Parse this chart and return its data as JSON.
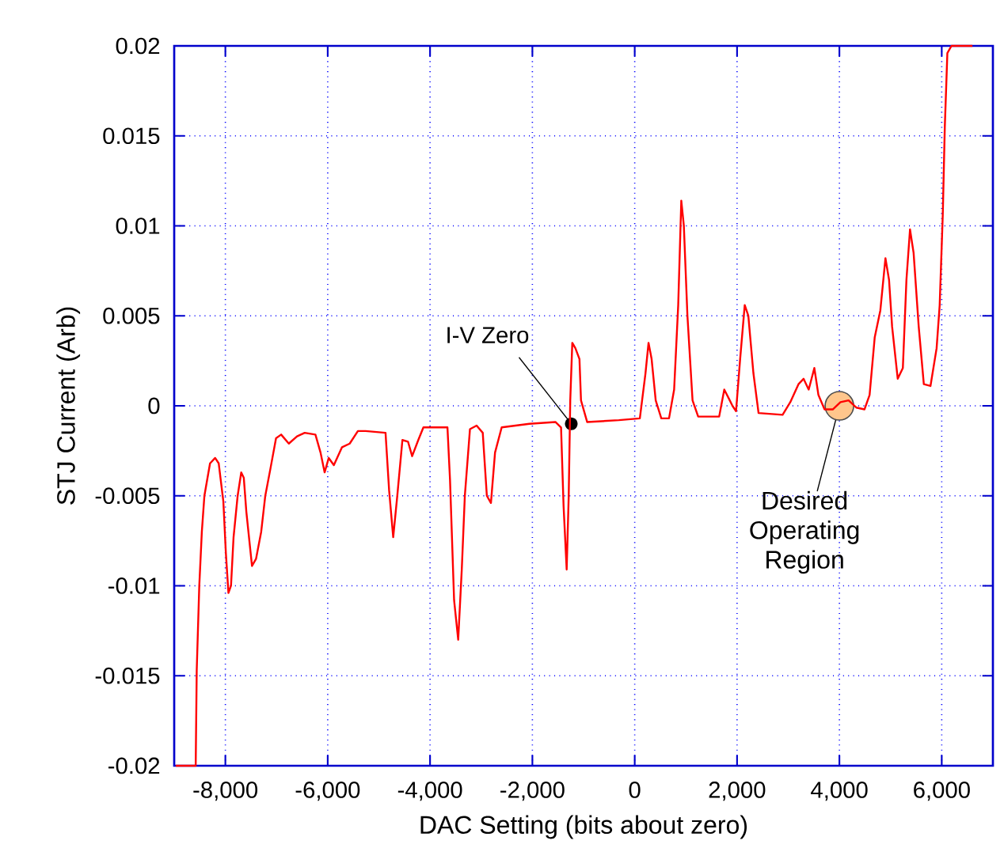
{
  "chart_data": {
    "type": "line",
    "xlabel": "DAC Setting (bits about zero)",
    "ylabel": "STJ Current (Arb)",
    "xlim": [
      -9000,
      7000
    ],
    "ylim": [
      -0.02,
      0.02
    ],
    "xticks": [
      {
        "value": -8000,
        "label": "-8,000"
      },
      {
        "value": -6000,
        "label": "-6,000"
      },
      {
        "value": -4000,
        "label": "-4,000"
      },
      {
        "value": -2000,
        "label": "-2,000"
      },
      0,
      {
        "value": 2000,
        "label": "2,000"
      },
      {
        "value": 4000,
        "label": "4,000"
      },
      {
        "value": 6000,
        "label": "6,000"
      }
    ],
    "yticks": [
      -0.02,
      -0.015,
      -0.01,
      -0.005,
      0,
      0.005,
      0.01,
      0.015,
      0.02
    ],
    "grid": true,
    "marker": "none",
    "line_style": "solid",
    "series": [
      {
        "color": "#ff0000",
        "x": [
          -8970,
          -8580,
          -8560,
          -8510,
          -8460,
          -8410,
          -8300,
          -8200,
          -8130,
          -8040,
          -7990,
          -7940,
          -7890,
          -7840,
          -7760,
          -7690,
          -7640,
          -7590,
          -7480,
          -7400,
          -7300,
          -7220,
          -7120,
          -7010,
          -6910,
          -6760,
          -6600,
          -6450,
          -6240,
          -6140,
          -6060,
          -5980,
          -5880,
          -5720,
          -5570,
          -5410,
          -5260,
          -4870,
          -4800,
          -4720,
          -4640,
          -4540,
          -4430,
          -4350,
          -4230,
          -4130,
          -3660,
          -3610,
          -3530,
          -3450,
          -3380,
          -3320,
          -3220,
          -3090,
          -2970,
          -2890,
          -2810,
          -2730,
          -2600,
          -2060,
          -1550,
          -1440,
          -1390,
          -1330,
          -1290,
          -1260,
          -1220,
          -1160,
          -1080,
          -1050,
          -930,
          -310,
          100,
          210,
          270,
          330,
          410,
          520,
          670,
          770,
          850,
          910,
          960,
          1030,
          1130,
          1240,
          1650,
          1750,
          1840,
          1910,
          1980,
          2060,
          2150,
          2220,
          2320,
          2420,
          2890,
          3040,
          3200,
          3300,
          3400,
          3510,
          3590,
          3710,
          3870,
          4020,
          4180,
          4330,
          4490,
          4590,
          4690,
          4800,
          4900,
          4970,
          5030,
          5140,
          5240,
          5310,
          5380,
          5450,
          5550,
          5650,
          5780,
          5900,
          5960,
          6020,
          6060,
          6110,
          6190,
          6600
        ],
        "values": [
          -0.02,
          -0.02,
          -0.0147,
          -0.01,
          -0.007,
          -0.005,
          -0.0032,
          -0.0029,
          -0.0032,
          -0.0053,
          -0.0082,
          -0.0104,
          -0.01,
          -0.0073,
          -0.005,
          -0.0037,
          -0.004,
          -0.0059,
          -0.0089,
          -0.0085,
          -0.007,
          -0.005,
          -0.0035,
          -0.0018,
          -0.0016,
          -0.0021,
          -0.0017,
          -0.0015,
          -0.0016,
          -0.0026,
          -0.0037,
          -0.0029,
          -0.0033,
          -0.0023,
          -0.0021,
          -0.0014,
          -0.0014,
          -0.0015,
          -0.0047,
          -0.0073,
          -0.005,
          -0.0019,
          -0.002,
          -0.0028,
          -0.0019,
          -0.0012,
          -0.0012,
          -0.0041,
          -0.0108,
          -0.013,
          -0.0091,
          -0.005,
          -0.0013,
          -0.0011,
          -0.0015,
          -0.005,
          -0.0054,
          -0.0026,
          -0.0012,
          -0.001,
          -0.0009,
          -0.0012,
          -0.0056,
          -0.0091,
          -0.005,
          0.0003,
          0.0035,
          0.0032,
          0.0026,
          0.0003,
          -0.0009,
          -0.0008,
          -0.0007,
          0.0018,
          0.0035,
          0.0026,
          0.0003,
          -0.0007,
          -0.0007,
          0.0009,
          0.0056,
          0.0114,
          0.01,
          0.005,
          0.0003,
          -0.0006,
          -0.0006,
          0.0009,
          0.0004,
          0,
          -0.0003,
          0.0026,
          0.0056,
          0.005,
          0.0018,
          -0.0004,
          -0.0005,
          0.0002,
          0.0012,
          0.0015,
          0.0009,
          0.0021,
          0.0006,
          -0.0002,
          -0.0002,
          0.0002,
          0.0003,
          -0.0001,
          -0.0002,
          0.0006,
          0.0038,
          0.0053,
          0.0082,
          0.007,
          0.0044,
          0.0015,
          0.0021,
          0.007,
          0.0098,
          0.0085,
          0.0044,
          0.0012,
          0.0011,
          0.0032,
          0.0056,
          0.0106,
          0.0155,
          0.0196,
          0.02,
          0.02
        ]
      }
    ],
    "annotations": [
      {
        "text": "I-V Zero",
        "x": -1240,
        "y": -0.001
      },
      {
        "text": "Desired Operating Region",
        "x": 4000,
        "y": 0
      }
    ]
  }
}
